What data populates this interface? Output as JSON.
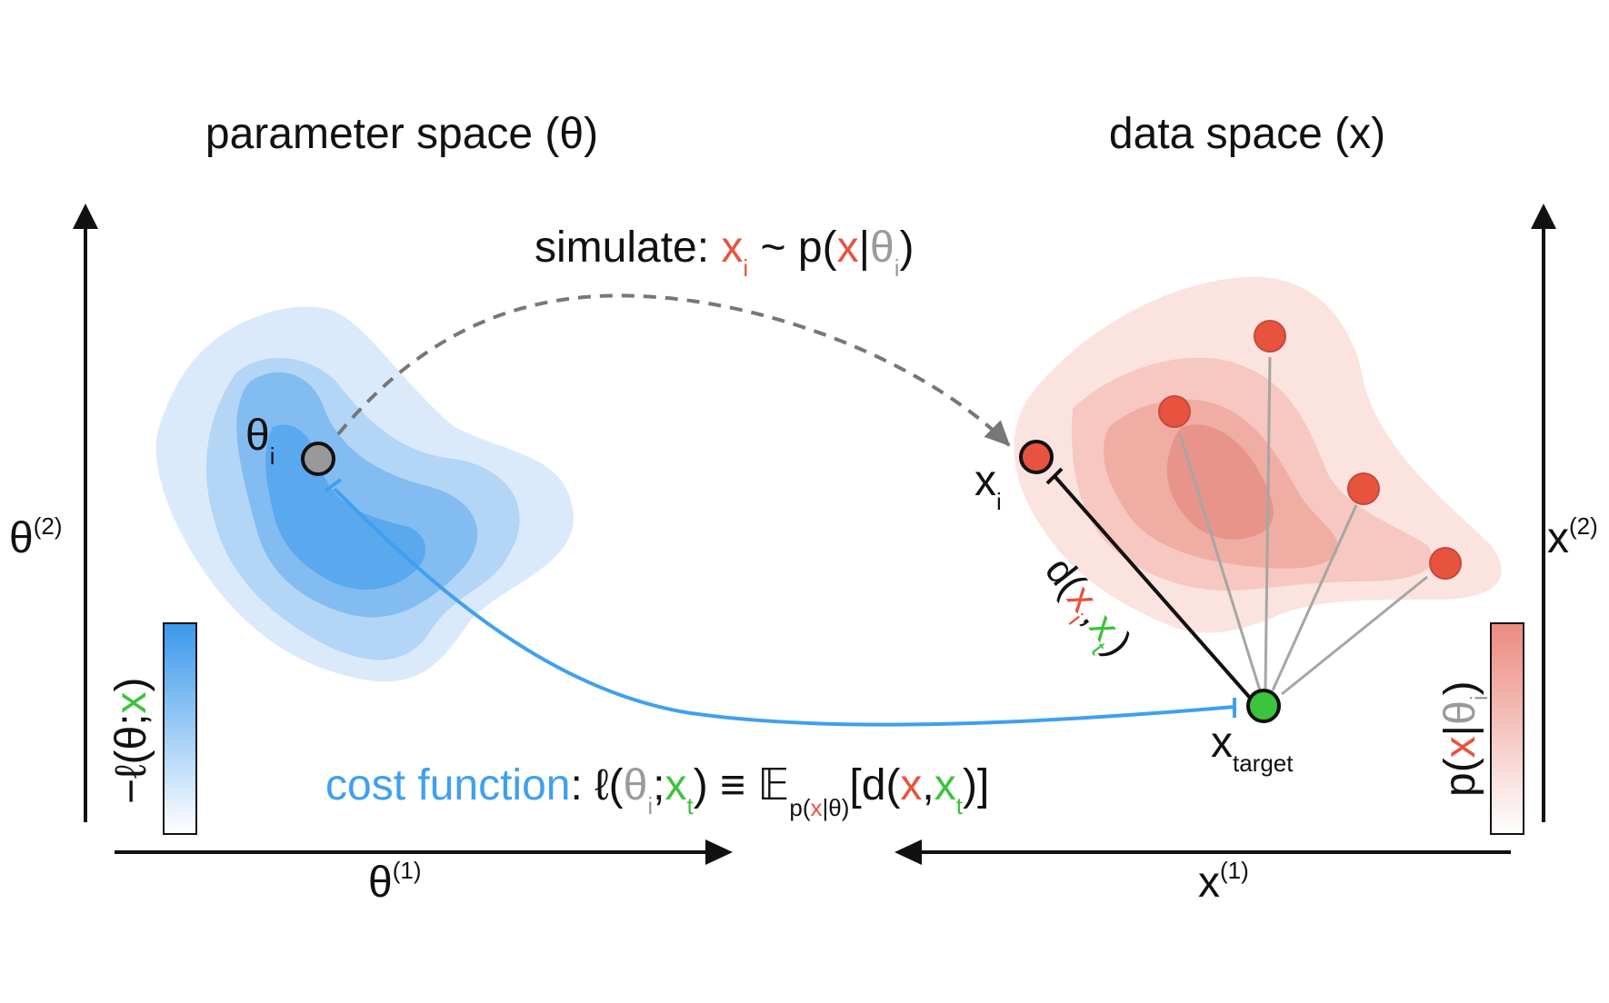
{
  "titles": {
    "parameter_space": "parameter space (θ)",
    "data_space": "data space (x)"
  },
  "colors": {
    "blue": "#3fa0ef",
    "red": "#e8533f",
    "green": "#3cc43c",
    "gray": "#9a9a9a",
    "dark": "#111111"
  },
  "axes": {
    "left_x": {
      "base": "θ",
      "sup": "(1)"
    },
    "left_y": {
      "base": "θ",
      "sup": "(2)"
    },
    "right_x": {
      "base": "x",
      "sup": "(1)"
    },
    "right_y": {
      "base": "x",
      "sup": "(2)"
    }
  },
  "simulate": {
    "prefix": "simulate: ",
    "x": "x",
    "x_sub": "i",
    "tilde": " ~ p(",
    "x2": "x",
    "bar": "|",
    "theta": "θ",
    "theta_sub": "i",
    "close": ")"
  },
  "points": {
    "theta_i": {
      "base": "θ",
      "sub": "i"
    },
    "x_i": {
      "base": "x",
      "sub": "i"
    },
    "x_target": {
      "base": "x",
      "sub": "target"
    }
  },
  "distance": {
    "d_open": "d(",
    "x": "x",
    "x_sub": "i",
    "comma": ",",
    "xt": "x",
    "xt_sub": "t",
    "close": ")"
  },
  "cost": {
    "label": "cost function",
    "colon": ": ",
    "ell": "ℓ(",
    "theta": "θ",
    "theta_sub": "i",
    "semi": ";",
    "xt": "x",
    "xt_sub": "t",
    "equiv": ") ≡ ",
    "E": "𝔼",
    "E_sub_p": "p(",
    "E_sub_x": "x",
    "E_sub_bar": "|θ)",
    "bracket": "[d(",
    "x": "x",
    "comma": ",",
    "xt2": "x",
    "xt2_sub": "t",
    "end": ")]"
  },
  "colorbars": {
    "left": {
      "minus_ell": "−ℓ(θ;",
      "x": "x",
      "close": ")"
    },
    "right": {
      "p": "p(",
      "x": "x",
      "bar": "|",
      "theta": "θ",
      "theta_sub": "i",
      "close": ")"
    }
  }
}
